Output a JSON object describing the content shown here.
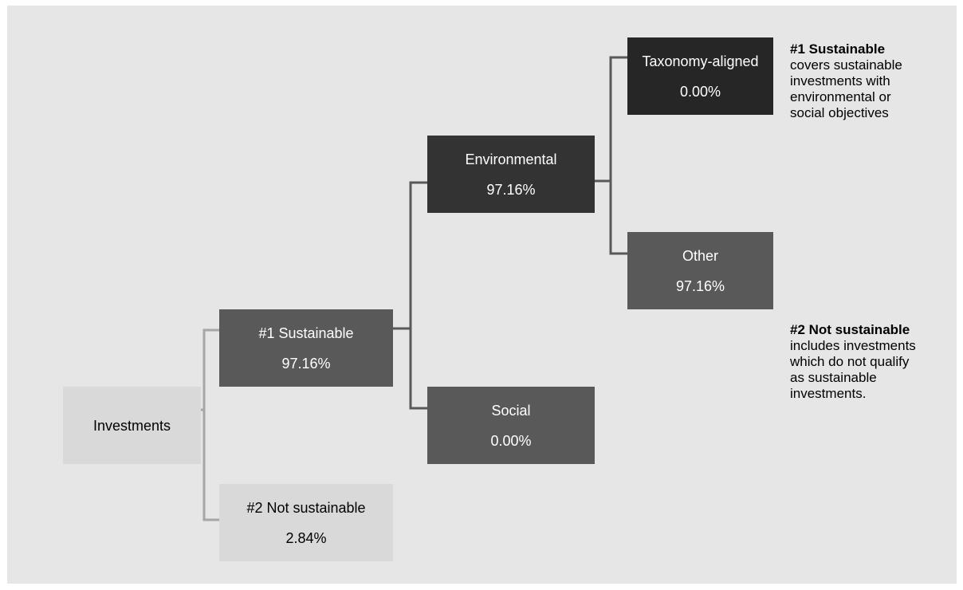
{
  "nodes": {
    "investments": {
      "label": "Investments"
    },
    "sustainable": {
      "label": "#1 Sustainable",
      "value": "97.16%"
    },
    "not_sustainable": {
      "label": "#2 Not sustainable",
      "value": "2.84%"
    },
    "environmental": {
      "label": "Environmental",
      "value": "97.16%"
    },
    "social": {
      "label": "Social",
      "value": "0.00%"
    },
    "taxonomy_aligned": {
      "label": "Taxonomy-aligned",
      "value": "0.00%"
    },
    "other": {
      "label": "Other",
      "value": "97.16%"
    }
  },
  "legend": {
    "sustainable": {
      "title": "#1 Sustainable",
      "text": "covers sustainable\ninvestments with\nenvironmental or\nsocial objectives"
    },
    "not_sustainable": {
      "title": "#2 Not sustainable",
      "text": "includes investments\nwhich do not qualify\nas sustainable\ninvestments."
    }
  },
  "colors": {
    "background": "#e6e6e6",
    "connector_dark": "#595959",
    "connector_light": "#a6a6a6",
    "box_darkest": "#262626",
    "box_dark": "#333333",
    "box_mid": "#595959",
    "box_light": "#d9d9d9"
  }
}
